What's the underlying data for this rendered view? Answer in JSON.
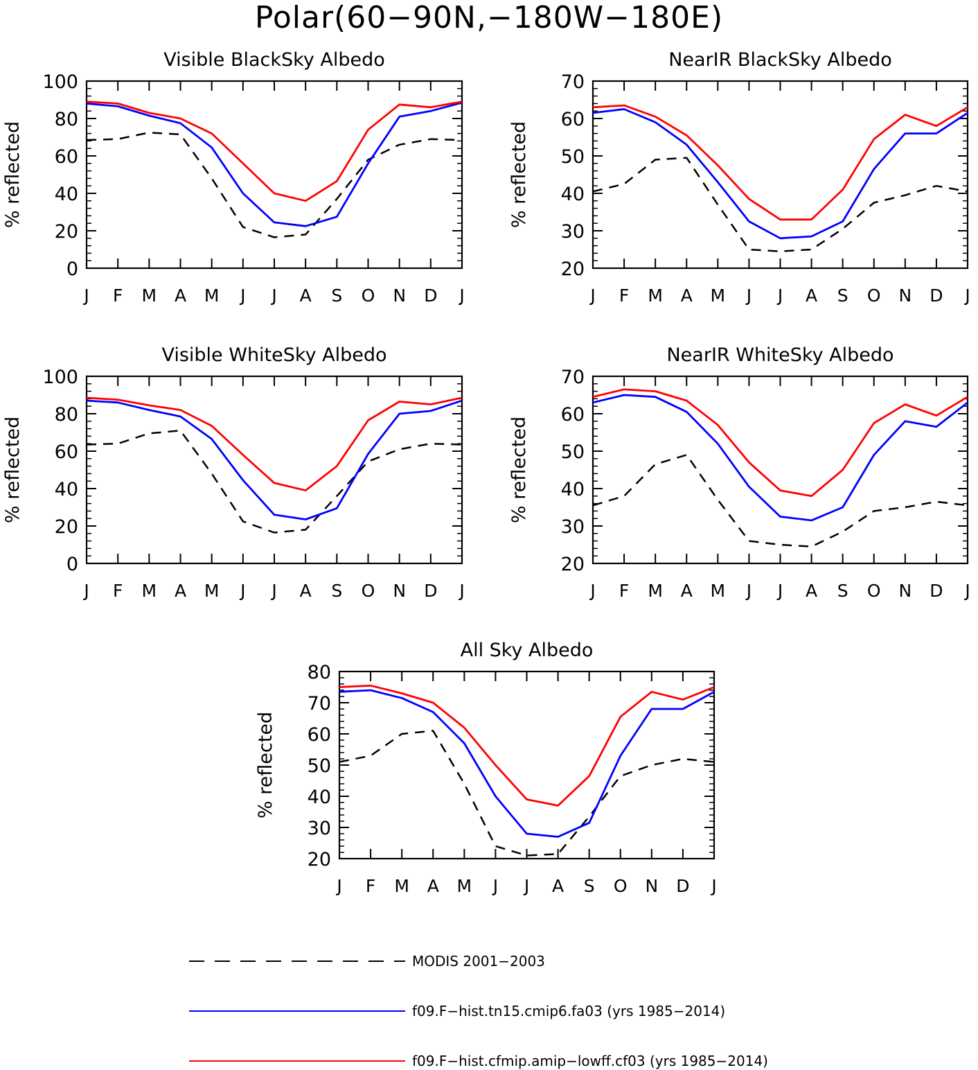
{
  "figure_title": "Polar(60−90N,−180W−180E)",
  "colors": {
    "modis": "#000000",
    "tn15": "#0000ff",
    "lowff": "#ff0000"
  },
  "chart_data": [
    {
      "type": "line",
      "title": "Visible BlackSky Albedo",
      "ylabel": "% reflected",
      "xlabel": "",
      "categories": [
        "J",
        "F",
        "M",
        "A",
        "M",
        "J",
        "J",
        "A",
        "S",
        "O",
        "N",
        "D",
        "J"
      ],
      "ylim": [
        0,
        100
      ],
      "yticks": [
        0,
        20,
        40,
        60,
        80,
        100
      ],
      "grid": false,
      "series": [
        {
          "name": "MODIS 2001−2003",
          "style": "dashed",
          "color": "#000000",
          "values": [
            68.5,
            69,
            72.5,
            71.5,
            48,
            22,
            16.5,
            18,
            37,
            58,
            66,
            69,
            68.5
          ]
        },
        {
          "name": "f09.F−hist.tn15.cmip6.fa03 (yrs 1985−2014)",
          "style": "solid",
          "color": "#0000ff",
          "values": [
            88,
            86.5,
            81.5,
            77.5,
            64.5,
            40,
            24.5,
            22.5,
            27.5,
            56,
            81,
            84,
            88.5
          ]
        },
        {
          "name": "f09.F−hist.cfmip.amip−lowff.cf03 (yrs 1985−2014)",
          "style": "solid",
          "color": "#ff0000",
          "values": [
            89,
            88,
            83,
            80,
            72,
            56,
            40,
            36,
            46.5,
            74,
            87.5,
            86,
            89
          ]
        }
      ]
    },
    {
      "type": "line",
      "title": "NearIR BlackSky Albedo",
      "ylabel": "% reflected",
      "xlabel": "",
      "categories": [
        "J",
        "F",
        "M",
        "A",
        "M",
        "J",
        "J",
        "A",
        "S",
        "O",
        "N",
        "D",
        "J"
      ],
      "ylim": [
        20,
        70
      ],
      "yticks": [
        20,
        30,
        40,
        50,
        60,
        70
      ],
      "grid": false,
      "series": [
        {
          "name": "MODIS 2001−2003",
          "style": "dashed",
          "color": "#000000",
          "values": [
            40.5,
            42.5,
            49,
            49.5,
            37,
            25,
            24.5,
            25,
            30.5,
            37.5,
            39.5,
            42,
            40.5
          ]
        },
        {
          "name": "f09.F−hist.tn15.cmip6.fa03 (yrs 1985−2014)",
          "style": "solid",
          "color": "#0000ff",
          "values": [
            61.5,
            62.5,
            59,
            53,
            43,
            32.5,
            28,
            28.5,
            32.5,
            46.5,
            56,
            56,
            61.5
          ]
        },
        {
          "name": "f09.F−hist.cfmip.amip−lowff.cf03 (yrs 1985−2014)",
          "style": "solid",
          "color": "#ff0000",
          "values": [
            63,
            63.5,
            60.5,
            55.5,
            47.5,
            38.5,
            33,
            33,
            41,
            54.5,
            61,
            58,
            63
          ]
        }
      ]
    },
    {
      "type": "line",
      "title": "Visible WhiteSky Albedo",
      "ylabel": "% reflected",
      "xlabel": "",
      "categories": [
        "J",
        "F",
        "M",
        "A",
        "M",
        "J",
        "J",
        "A",
        "S",
        "O",
        "N",
        "D",
        "J"
      ],
      "ylim": [
        0,
        100
      ],
      "yticks": [
        0,
        20,
        40,
        60,
        80,
        100
      ],
      "grid": false,
      "series": [
        {
          "name": "MODIS 2001−2003",
          "style": "dashed",
          "color": "#000000",
          "values": [
            63.5,
            64,
            69.5,
            71,
            48,
            22.5,
            16.5,
            18,
            36,
            54.5,
            61,
            64,
            63.5
          ]
        },
        {
          "name": "f09.F−hist.tn15.cmip6.fa03 (yrs 1985−2014)",
          "style": "solid",
          "color": "#0000ff",
          "values": [
            87,
            86,
            82,
            78.5,
            66.5,
            44.5,
            26,
            23.5,
            29.5,
            58.5,
            80,
            81.5,
            87
          ]
        },
        {
          "name": "f09.F−hist.cfmip.amip−lowff.cf03 (yrs 1985−2014)",
          "style": "solid",
          "color": "#ff0000",
          "values": [
            88.5,
            87.5,
            84.5,
            82,
            73.5,
            58,
            43,
            39,
            52,
            76.5,
            86.5,
            85,
            88.5
          ]
        }
      ]
    },
    {
      "type": "line",
      "title": "NearIR WhiteSky Albedo",
      "ylabel": "% reflected",
      "xlabel": "",
      "categories": [
        "J",
        "F",
        "M",
        "A",
        "M",
        "J",
        "J",
        "A",
        "S",
        "O",
        "N",
        "D",
        "J"
      ],
      "ylim": [
        20,
        70
      ],
      "yticks": [
        20,
        30,
        40,
        50,
        60,
        70
      ],
      "grid": false,
      "series": [
        {
          "name": "MODIS 2001−2003",
          "style": "dashed",
          "color": "#000000",
          "values": [
            35.5,
            38,
            46.5,
            49,
            37,
            26,
            25,
            24.5,
            28.5,
            34,
            35,
            36.5,
            35.5
          ]
        },
        {
          "name": "f09.F−hist.tn15.cmip6.fa03 (yrs 1985−2014)",
          "style": "solid",
          "color": "#0000ff",
          "values": [
            63,
            65,
            64.5,
            60.5,
            52,
            40.5,
            32.5,
            31.5,
            35,
            49,
            58,
            56.5,
            63
          ]
        },
        {
          "name": "f09.F−hist.cfmip.amip−lowff.cf03 (yrs 1985−2014)",
          "style": "solid",
          "color": "#ff0000",
          "values": [
            64.5,
            66.5,
            66,
            63.5,
            57,
            47,
            39.5,
            38,
            45,
            57.5,
            62.5,
            59.5,
            64.5
          ]
        }
      ]
    },
    {
      "type": "line",
      "title": "All Sky Albedo",
      "ylabel": "% reflected",
      "xlabel": "",
      "categories": [
        "J",
        "F",
        "M",
        "A",
        "M",
        "J",
        "J",
        "A",
        "S",
        "O",
        "N",
        "D",
        "J"
      ],
      "ylim": [
        20,
        80
      ],
      "yticks": [
        20,
        30,
        40,
        50,
        60,
        70,
        80
      ],
      "grid": false,
      "series": [
        {
          "name": "MODIS 2001−2003",
          "style": "dashed",
          "color": "#000000",
          "values": [
            51,
            53,
            60,
            61,
            44,
            24,
            21,
            21.5,
            33.5,
            46.5,
            50,
            52,
            51
          ]
        },
        {
          "name": "f09.F−hist.tn15.cmip6.fa03 (yrs 1985−2014)",
          "style": "solid",
          "color": "#0000ff",
          "values": [
            73.5,
            74,
            71.5,
            67,
            57,
            40,
            28,
            27,
            31.5,
            53,
            68,
            68,
            73.5
          ]
        },
        {
          "name": "f09.F−hist.cfmip.amip−lowff.cf03 (yrs 1985−2014)",
          "style": "solid",
          "color": "#ff0000",
          "values": [
            75,
            75.5,
            73,
            70,
            62,
            50,
            39,
            37,
            46.5,
            65.5,
            73.5,
            71,
            75
          ]
        }
      ]
    }
  ],
  "legend": {
    "placement": "bottom-center",
    "items": [
      {
        "label": "MODIS 2001−2003",
        "style": "dashed",
        "color": "#000000"
      },
      {
        "label": "f09.F−hist.tn15.cmip6.fa03 (yrs 1985−2014)",
        "style": "solid",
        "color": "#0000ff"
      },
      {
        "label": "f09.F−hist.cfmip.amip−lowff.cf03 (yrs 1985−2014)",
        "style": "solid",
        "color": "#ff0000"
      }
    ]
  }
}
